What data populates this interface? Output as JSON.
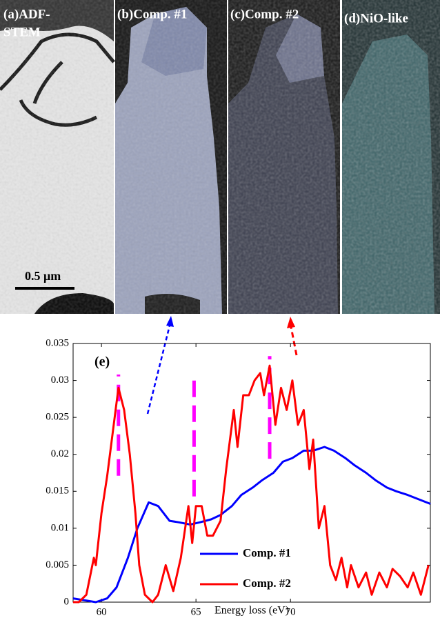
{
  "panels": [
    {
      "lines": [
        "(a)ADF-",
        "STEM"
      ]
    },
    {
      "lines": [
        "(b)Comp. #1"
      ]
    },
    {
      "lines": [
        "(c)Comp. #2"
      ]
    },
    {
      "lines": [
        "(d)NiO-like"
      ]
    }
  ],
  "scale_bar": "0.5 μm",
  "chart_data": {
    "type": "line",
    "panel_label": "(e)",
    "x_label": "Energy loss (eV)",
    "xlim": [
      58.5,
      77.4
    ],
    "xticks": [
      60,
      65,
      70
    ],
    "ylim": [
      0,
      0.035
    ],
    "yticks": [
      0,
      0.005,
      0.01,
      0.015,
      0.02,
      0.025,
      0.03,
      0.035
    ],
    "legend": "lower-center",
    "series": [
      {
        "name": "Comp. #1",
        "color": "#0000ff",
        "x": [
          58.5,
          59.0,
          59.7,
          60.3,
          60.8,
          61.4,
          61.9,
          62.5,
          63.0,
          63.6,
          64.1,
          64.7,
          65.2,
          65.8,
          66.3,
          66.9,
          67.4,
          68.0,
          68.5,
          69.1,
          69.6,
          70.1,
          70.7,
          71.2,
          71.8,
          72.3,
          72.9,
          73.4,
          74.0,
          74.5,
          75.1,
          75.6,
          76.2,
          76.7,
          77.4
        ],
        "values": [
          0.0005,
          0.0003,
          0,
          0.0005,
          0.002,
          0.006,
          0.01,
          0.0135,
          0.013,
          0.011,
          0.0108,
          0.0105,
          0.0108,
          0.0112,
          0.0118,
          0.013,
          0.0145,
          0.0155,
          0.0165,
          0.0175,
          0.019,
          0.0195,
          0.0205,
          0.0205,
          0.021,
          0.0205,
          0.0195,
          0.0185,
          0.0175,
          0.0165,
          0.0155,
          0.015,
          0.0145,
          0.014,
          0.0133
        ]
      },
      {
        "name": "Comp. #2",
        "color": "#ff0000",
        "x": [
          58.5,
          58.8,
          59.2,
          59.6,
          59.7,
          60.0,
          60.3,
          60.5,
          60.8,
          60.9,
          61.2,
          61.5,
          61.8,
          62.0,
          62.3,
          62.7,
          63.0,
          63.4,
          63.8,
          64.2,
          64.6,
          64.8,
          65.0,
          65.3,
          65.6,
          65.9,
          66.3,
          66.6,
          67.0,
          67.2,
          67.5,
          67.8,
          68.1,
          68.4,
          68.6,
          68.9,
          69.2,
          69.5,
          69.8,
          70.1,
          70.4,
          70.7,
          71.0,
          71.2,
          71.5,
          71.8,
          72.1,
          72.4,
          72.7,
          73.0,
          73.2,
          73.6,
          74.0,
          74.3,
          74.7,
          75.1,
          75.4,
          75.8,
          76.2,
          76.5,
          76.9,
          77.3
        ],
        "values": [
          0,
          0,
          0.001,
          0.006,
          0.005,
          0.012,
          0.017,
          0.021,
          0.027,
          0.029,
          0.026,
          0.02,
          0.012,
          0.005,
          0.001,
          0,
          0.001,
          0.005,
          0.0015,
          0.006,
          0.013,
          0.008,
          0.013,
          0.013,
          0.009,
          0.009,
          0.011,
          0.018,
          0.026,
          0.021,
          0.028,
          0.028,
          0.03,
          0.031,
          0.028,
          0.032,
          0.024,
          0.029,
          0.026,
          0.03,
          0.024,
          0.026,
          0.018,
          0.022,
          0.01,
          0.013,
          0.005,
          0.003,
          0.006,
          0.002,
          0.005,
          0.002,
          0.004,
          0.001,
          0.004,
          0.002,
          0.0045,
          0.0035,
          0.002,
          0.004,
          0.001,
          0.005
        ]
      }
    ],
    "markers": [
      {
        "x": 60.9,
        "y": [
          0.0171,
          0.0308
        ],
        "color": "#ff00ff"
      },
      {
        "x": 64.9,
        "y": [
          0.0143,
          0.0303
        ],
        "color": "#ff00ff"
      },
      {
        "x": 68.9,
        "y": [
          0.0194,
          0.0333
        ],
        "color": "#ff00ff"
      }
    ]
  }
}
